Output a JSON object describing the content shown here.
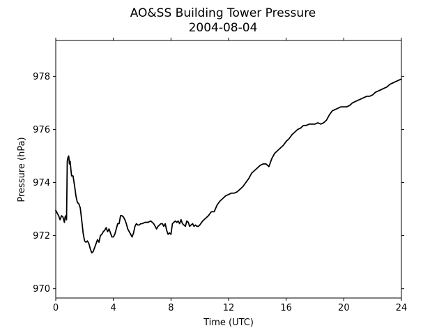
{
  "chart_data": {
    "type": "line",
    "title": "AO&SS Building Tower Pressure",
    "subtitle": "2004-08-04",
    "xlabel": "Time (UTC)",
    "ylabel": "Pressure (hPa)",
    "xlim": [
      0,
      24
    ],
    "ylim": [
      969.65,
      979.35
    ],
    "xticks": [
      0,
      4,
      8,
      12,
      16,
      20,
      24
    ],
    "yticks": [
      970,
      972,
      974,
      976,
      978
    ],
    "grid": false,
    "legend": "none",
    "series": [
      {
        "color": "#000000",
        "x": [
          0.0,
          0.1,
          0.2,
          0.3,
          0.4,
          0.5,
          0.6,
          0.65,
          0.7,
          0.75,
          0.8,
          0.85,
          0.9,
          0.95,
          1.0,
          1.05,
          1.1,
          1.2,
          1.3,
          1.4,
          1.5,
          1.6,
          1.7,
          1.8,
          1.9,
          2.0,
          2.1,
          2.2,
          2.3,
          2.4,
          2.5,
          2.6,
          2.7,
          2.8,
          2.9,
          3.0,
          3.1,
          3.2,
          3.3,
          3.4,
          3.5,
          3.6,
          3.7,
          3.8,
          3.9,
          4.0,
          4.1,
          4.2,
          4.3,
          4.4,
          4.5,
          4.6,
          4.7,
          4.8,
          4.9,
          5.0,
          5.1,
          5.2,
          5.3,
          5.4,
          5.5,
          5.6,
          5.7,
          5.8,
          5.9,
          6.0,
          6.2,
          6.4,
          6.6,
          6.8,
          7.0,
          7.1,
          7.2,
          7.3,
          7.4,
          7.5,
          7.6,
          7.7,
          7.8,
          7.9,
          8.0,
          8.1,
          8.2,
          8.3,
          8.4,
          8.5,
          8.6,
          8.7,
          8.8,
          8.9,
          9.0,
          9.1,
          9.2,
          9.3,
          9.4,
          9.5,
          9.6,
          9.7,
          9.8,
          9.9,
          10.0,
          10.2,
          10.4,
          10.6,
          10.8,
          11.0,
          11.2,
          11.4,
          11.6,
          11.8,
          12.0,
          12.2,
          12.4,
          12.6,
          12.8,
          13.0,
          13.2,
          13.4,
          13.6,
          13.8,
          14.0,
          14.2,
          14.4,
          14.6,
          14.8,
          15.0,
          15.2,
          15.4,
          15.6,
          15.8,
          16.0,
          16.2,
          16.4,
          16.6,
          16.8,
          17.0,
          17.2,
          17.4,
          17.6,
          17.8,
          18.0,
          18.2,
          18.4,
          18.6,
          18.8,
          19.0,
          19.2,
          19.4,
          19.6,
          19.8,
          20.0,
          20.2,
          20.4,
          20.6,
          20.8,
          21.0,
          21.2,
          21.4,
          21.6,
          21.8,
          22.0,
          22.2,
          22.4,
          22.6,
          22.8,
          23.0,
          23.2,
          23.4,
          23.6,
          23.8,
          24.0
        ],
        "y": [
          972.95,
          972.85,
          972.75,
          972.6,
          972.75,
          972.7,
          972.5,
          972.7,
          972.75,
          972.6,
          974.8,
          974.95,
          975.0,
          974.7,
          974.8,
          974.5,
          974.25,
          974.25,
          973.9,
          973.5,
          973.25,
          973.2,
          973.05,
          972.6,
          972.1,
          971.8,
          971.75,
          971.8,
          971.7,
          971.5,
          971.35,
          971.4,
          971.55,
          971.7,
          971.85,
          971.75,
          972.0,
          972.05,
          972.15,
          972.2,
          972.3,
          972.15,
          972.25,
          972.1,
          971.95,
          971.95,
          972.05,
          972.25,
          972.45,
          972.45,
          972.75,
          972.75,
          972.7,
          972.6,
          972.45,
          972.25,
          972.15,
          972.05,
          971.95,
          972.1,
          972.35,
          972.45,
          972.4,
          972.4,
          972.45,
          972.45,
          972.5,
          972.5,
          972.55,
          972.45,
          972.25,
          972.35,
          972.4,
          972.45,
          972.45,
          972.35,
          972.45,
          972.2,
          972.05,
          972.1,
          972.05,
          972.45,
          972.5,
          972.55,
          972.5,
          972.55,
          972.45,
          972.6,
          972.45,
          972.4,
          972.35,
          972.55,
          972.5,
          972.35,
          972.4,
          972.45,
          972.35,
          972.4,
          972.35,
          972.35,
          972.4,
          972.55,
          972.65,
          972.75,
          972.9,
          972.9,
          973.15,
          973.3,
          973.4,
          973.5,
          973.55,
          973.6,
          973.6,
          973.65,
          973.75,
          973.85,
          974.0,
          974.15,
          974.35,
          974.45,
          974.55,
          974.65,
          974.7,
          974.7,
          974.6,
          974.9,
          975.1,
          975.2,
          975.3,
          975.4,
          975.55,
          975.65,
          975.8,
          975.9,
          976.0,
          976.05,
          976.15,
          976.15,
          976.2,
          976.2,
          976.2,
          976.25,
          976.2,
          976.25,
          976.35,
          976.55,
          976.7,
          976.75,
          976.8,
          976.85,
          976.85,
          976.85,
          976.9,
          977.0,
          977.05,
          977.1,
          977.15,
          977.2,
          977.25,
          977.25,
          977.3,
          977.4,
          977.45,
          977.5,
          977.55,
          977.6,
          977.7,
          977.75,
          977.8,
          977.85,
          977.9
        ]
      }
    ]
  }
}
